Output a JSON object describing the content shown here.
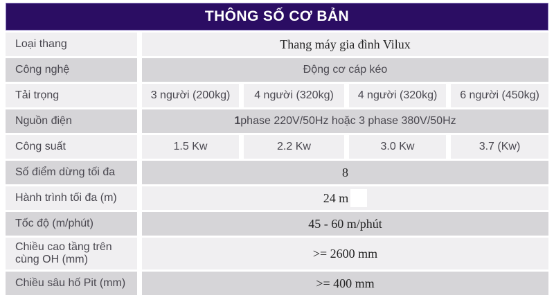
{
  "header": {
    "title": "THÔNG SỐ CƠ BẢN",
    "bg_color": "#2b0d63",
    "border_color": "#8d7cc2",
    "text_color": "#ffffff"
  },
  "colors": {
    "row_light": "#f0eff1",
    "row_dark": "#d6d5d8",
    "label_text": "#49474f",
    "serif_text": "#232323"
  },
  "table": {
    "rows": [
      {
        "label": "Loại thang",
        "value": "Thang máy gia đình Vilux"
      },
      {
        "label": "Công nghệ",
        "value": "Động cơ cáp kéo"
      },
      {
        "label": "Tải trọng",
        "values": [
          "3 người (200kg)",
          "4 người (320kg)",
          "4 người (320kg)",
          "6 người (450kg)"
        ]
      },
      {
        "label": "Nguồn điện",
        "value_bold": "1",
        "value_rest": " phase 220V/50Hz hoặc 3 phase 380V/50Hz"
      },
      {
        "label": "Công suất",
        "values": [
          "1.5 Kw",
          "2.2 Kw",
          "3.0 Kw",
          "3.7 (Kw)"
        ]
      },
      {
        "label": "Số điểm dừng tối đa",
        "value": "8"
      },
      {
        "label": "Hành trình tối đa (m)",
        "value": "24 m"
      },
      {
        "label": "Tốc độ (m/phút)",
        "value": "45 - 60 m/phút"
      },
      {
        "label": "Chiều cao tầng trên cùng OH (mm)",
        "value": ">= 2600 mm"
      },
      {
        "label": "Chiều sâu hố Pit (mm)",
        "value": ">= 400 mm"
      }
    ]
  }
}
